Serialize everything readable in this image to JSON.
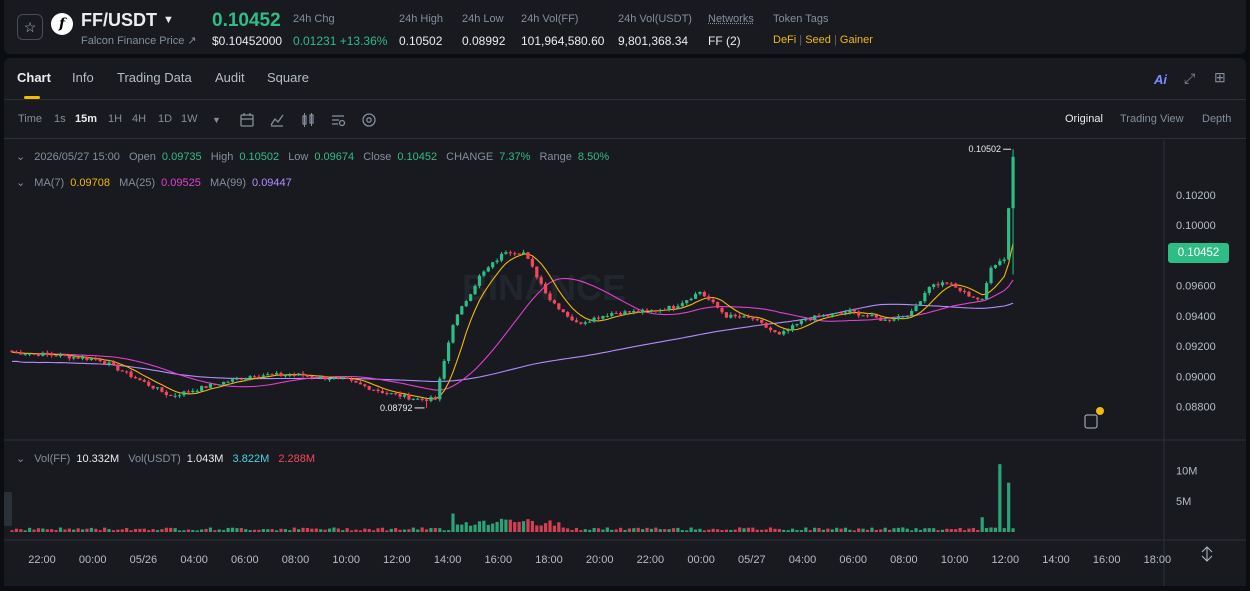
{
  "header": {
    "pair": "FF/USDT",
    "subtitle": "Falcon Finance Price",
    "subtitle_icon": "external-link-icon",
    "price": "0.10452",
    "price_usd": "$0.10452000",
    "stats": [
      {
        "label": "24h Chg",
        "value": "0.01231 +13.36%"
      },
      {
        "label": "24h High",
        "value": "0.10502"
      },
      {
        "label": "24h Low",
        "value": "0.08992"
      },
      {
        "label": "24h Vol(FF)",
        "value": "101,964,580.60"
      },
      {
        "label": "24h Vol(USDT)",
        "value": "9,801,368.34"
      },
      {
        "label": "Networks",
        "value": "FF (2)"
      },
      {
        "label": "Token Tags",
        "tags": [
          "DeFi",
          "Seed",
          "Gainer"
        ]
      }
    ],
    "colors": {
      "up": "#2ebd85",
      "down": "#f6465d",
      "accent": "#f0b90b"
    }
  },
  "tabs": [
    "Chart",
    "Info",
    "Trading Data",
    "Audit",
    "Square"
  ],
  "active_tab": "Chart",
  "ai_label": "Ai",
  "toolbar": {
    "intervals": [
      "Time",
      "1s",
      "15m",
      "1H",
      "4H",
      "1D",
      "1W"
    ],
    "active_interval": "15m",
    "tools": [
      "chevron-down-icon",
      "calendar-icon",
      "indicator-icon",
      "candle-type-icon",
      "settings-icon",
      "target-icon"
    ],
    "views": [
      "Original",
      "Trading View",
      "Depth"
    ],
    "active_view": "Original"
  },
  "legend": {
    "ohlc": {
      "date": "2026/05/27 15:00",
      "open_label": "Open",
      "open": "0.09735",
      "high_label": "High",
      "high": "0.10502",
      "low_label": "Low",
      "low": "0.09674",
      "close_label": "Close",
      "close": "0.10452",
      "change_label": "CHANGE",
      "change": "7.37%",
      "range_label": "Range",
      "range": "8.50%"
    },
    "ma": [
      {
        "label": "MA(7)",
        "value": "0.09708",
        "color": "#f0b90b"
      },
      {
        "label": "MA(25)",
        "value": "0.09525",
        "color": "#e040d0"
      },
      {
        "label": "MA(99)",
        "value": "0.09447",
        "color": "#b48cff"
      }
    ],
    "vol": {
      "ff_label": "Vol(FF)",
      "ff": "10.332M",
      "usdt_label": "Vol(USDT)",
      "usdt": "1.043M",
      "a": "3.822M",
      "b": "2.288M"
    }
  },
  "watermark": "BINANCE",
  "current_price_tag": "0.10452",
  "high_marker": "0.10502",
  "low_marker": "0.08792",
  "price_axis": [
    "0.10200",
    "0.10000",
    "0.09800",
    "0.09600",
    "0.09400",
    "0.09200",
    "0.09000",
    "0.08800"
  ],
  "volume_axis": [
    "10M",
    "5M"
  ],
  "time_axis": [
    "22:00",
    "00:00",
    "05/26",
    "04:00",
    "06:00",
    "08:00",
    "10:00",
    "12:00",
    "14:00",
    "16:00",
    "18:00",
    "20:00",
    "22:00",
    "00:00",
    "05/27",
    "04:00",
    "06:00",
    "08:00",
    "10:00",
    "12:00",
    "14:00",
    "16:00",
    "18:00"
  ],
  "chart_data": {
    "type": "candlestick",
    "interval": "15m",
    "y_range": [
      0.0858,
      0.1053
    ],
    "close_anchors": [
      [
        0,
        0.0916
      ],
      [
        10,
        0.0914
      ],
      [
        20,
        0.0911
      ],
      [
        28,
        0.0899
      ],
      [
        36,
        0.0887
      ],
      [
        45,
        0.0894
      ],
      [
        55,
        0.0901
      ],
      [
        65,
        0.0901
      ],
      [
        75,
        0.0898
      ],
      [
        85,
        0.0889
      ],
      [
        92,
        0.0885
      ],
      [
        96,
        0.0885
      ],
      [
        100,
        0.0935
      ],
      [
        106,
        0.0966
      ],
      [
        112,
        0.0983
      ],
      [
        116,
        0.0982
      ],
      [
        122,
        0.0951
      ],
      [
        128,
        0.0935
      ],
      [
        136,
        0.0942
      ],
      [
        144,
        0.0943
      ],
      [
        150,
        0.0946
      ],
      [
        156,
        0.0956
      ],
      [
        162,
        0.094
      ],
      [
        168,
        0.0938
      ],
      [
        174,
        0.0927
      ],
      [
        180,
        0.0938
      ],
      [
        190,
        0.0943
      ],
      [
        198,
        0.0937
      ],
      [
        204,
        0.0942
      ],
      [
        208,
        0.096
      ],
      [
        212,
        0.0962
      ],
      [
        216,
        0.0955
      ],
      [
        220,
        0.095
      ],
      [
        222,
        0.0973
      ],
      [
        225,
        0.0978
      ],
      [
        227,
        0.1045
      ]
    ],
    "volume_spikes_millions": [
      [
        100,
        3.0
      ],
      [
        113,
        2.0
      ],
      [
        220,
        2.4
      ],
      [
        224,
        11.0
      ],
      [
        226,
        8.0
      ]
    ]
  }
}
